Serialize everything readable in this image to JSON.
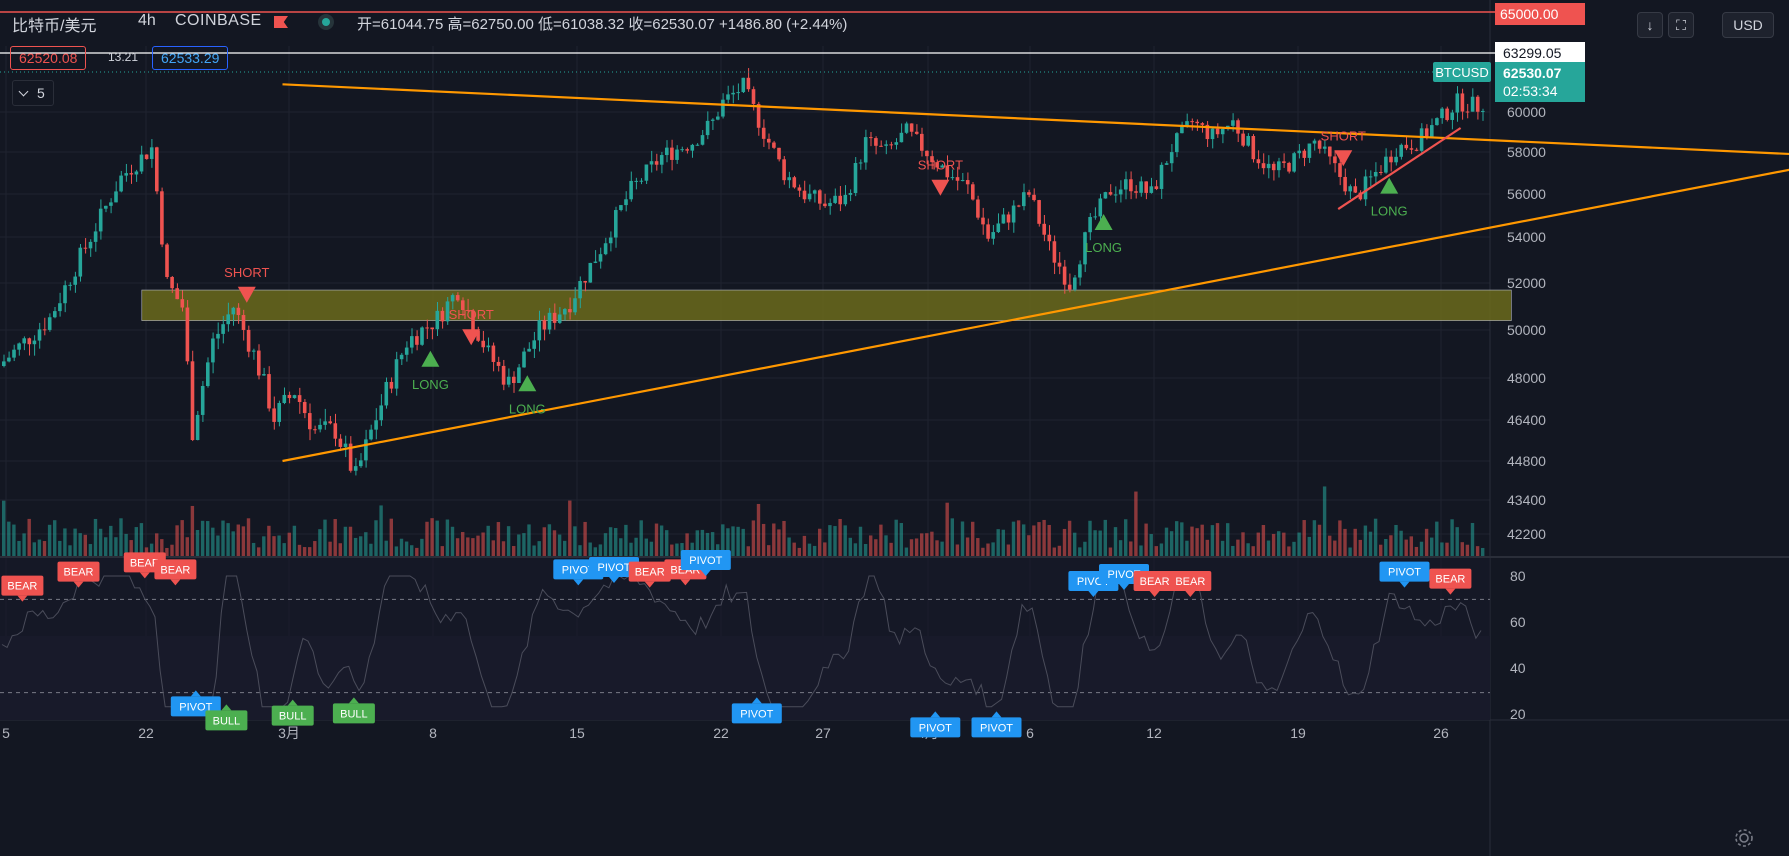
{
  "header": {
    "symbol": "比特币/美元",
    "timeframe": "4h",
    "exchange": "COINBASE",
    "ohlc_text": "开=61044.75 高=62750.00 低=61038.32 收=62530.07 +1486.80 (+2.44%)",
    "bid": "62520.08",
    "spread": "13.21",
    "ask": "62533.29",
    "indicators_count": "5",
    "currency": "USD"
  },
  "axis_tags": {
    "top_red": "65000.00",
    "white_line": "63299.05",
    "symbol_tag": "BTCUSD",
    "last_price": "62530.07",
    "countdown": "02:53:34"
  },
  "colors": {
    "bg": "#131722",
    "grid": "#1f2330",
    "up": "#26a69a",
    "down": "#ef5350",
    "trend": "#ff9800",
    "zone": "#6b6a1c",
    "pivot": "#2196f3",
    "bear": "#ef5350",
    "bull": "#4caf50"
  },
  "chart_data": {
    "type": "candlestick",
    "price_axis_ticks": [
      "60000",
      "58000",
      "56000",
      "54000",
      "52000",
      "50000",
      "48000",
      "46400",
      "44800",
      "43400",
      "42200"
    ],
    "rsi_axis_ticks": [
      "80",
      "60",
      "40",
      "20"
    ],
    "time_axis_ticks": [
      "5",
      "22",
      "3月",
      "8",
      "15",
      "22",
      "27",
      "4月",
      "6",
      "12",
      "19",
      "26"
    ],
    "rsi_levels": [
      70,
      30
    ],
    "support_zone": {
      "from_date_index": 18,
      "to_date_index": 283,
      "low": 50400,
      "high": 51700
    },
    "trendlines": [
      {
        "name": "upper",
        "from": [
          55,
          61400
        ],
        "to": [
          360,
          57800
        ]
      },
      {
        "name": "lower",
        "from": [
          55,
          44800
        ],
        "to": [
          360,
          57600
        ]
      },
      {
        "name": "short-up",
        "from": [
          262,
          55300
        ],
        "to": [
          286,
          59200
        ]
      }
    ],
    "signals": [
      {
        "label": "SHORT",
        "kind": "short",
        "index": 48,
        "price": 51500
      },
      {
        "label": "LONG",
        "kind": "long",
        "index": 84,
        "price": 48800
      },
      {
        "label": "SHORT",
        "kind": "short",
        "index": 92,
        "price": 49700
      },
      {
        "label": "LONG",
        "kind": "long",
        "index": 103,
        "price": 47800
      },
      {
        "label": "SHORT",
        "kind": "short",
        "index": 184,
        "price": 56300
      },
      {
        "label": "LONG",
        "kind": "long",
        "index": 216,
        "price": 54700
      },
      {
        "label": "SHORT",
        "kind": "short",
        "index": 263,
        "price": 57700
      },
      {
        "label": "LONG",
        "kind": "long",
        "index": 272,
        "price": 56400
      }
    ],
    "rsi_labels": [
      {
        "label": "BEAR",
        "kind": "bear",
        "index": 4,
        "rsi": 69
      },
      {
        "label": "BEAR",
        "kind": "bear",
        "index": 15,
        "rsi": 75
      },
      {
        "label": "BEAR",
        "kind": "bear",
        "index": 28,
        "rsi": 79
      },
      {
        "label": "BEAR",
        "kind": "bear",
        "index": 34,
        "rsi": 76
      },
      {
        "label": "PIVOT",
        "kind": "pivot",
        "index": 38,
        "rsi": 31
      },
      {
        "label": "BULL",
        "kind": "bull",
        "index": 44,
        "rsi": 25
      },
      {
        "label": "BULL",
        "kind": "bull",
        "index": 57,
        "rsi": 27
      },
      {
        "label": "BULL",
        "kind": "bull",
        "index": 69,
        "rsi": 28
      },
      {
        "label": "PIVOT",
        "kind": "pivot",
        "index": 113,
        "rsi": 76
      },
      {
        "label": "PIVOT",
        "kind": "pivot",
        "index": 120,
        "rsi": 77
      },
      {
        "label": "BEAR",
        "kind": "bear",
        "index": 127,
        "rsi": 75
      },
      {
        "label": "BEAR",
        "kind": "bear",
        "index": 134,
        "rsi": 76
      },
      {
        "label": "PIVOT",
        "kind": "pivot",
        "index": 138,
        "rsi": 80
      },
      {
        "label": "PIVOT",
        "kind": "pivot",
        "index": 148,
        "rsi": 28
      },
      {
        "label": "PIVOT",
        "kind": "pivot",
        "index": 183,
        "rsi": 22
      },
      {
        "label": "PIVOT",
        "kind": "pivot",
        "index": 195,
        "rsi": 22
      },
      {
        "label": "PIVOT",
        "kind": "pivot",
        "index": 214,
        "rsi": 71
      },
      {
        "label": "PIVOT",
        "kind": "pivot",
        "index": 220,
        "rsi": 74
      },
      {
        "label": "BEAR",
        "kind": "bear",
        "index": 226,
        "rsi": 71
      },
      {
        "label": "BEAR",
        "kind": "bear",
        "index": 233,
        "rsi": 71
      },
      {
        "label": "PIVOT",
        "kind": "pivot",
        "index": 275,
        "rsi": 75
      },
      {
        "label": "BEAR",
        "kind": "bear",
        "index": 284,
        "rsi": 72
      }
    ]
  }
}
